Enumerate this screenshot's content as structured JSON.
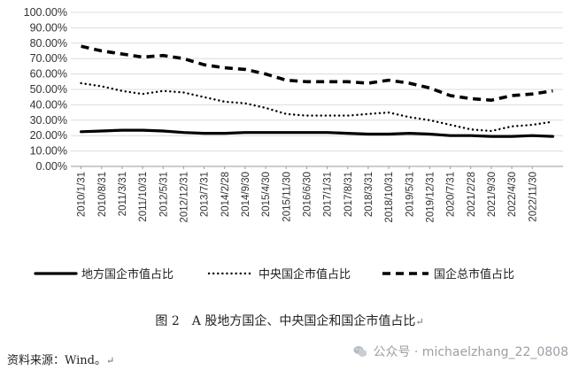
{
  "chart_data": {
    "type": "line",
    "ylim": [
      0,
      100
    ],
    "yticks": [
      "0.00%",
      "10.00%",
      "20.00%",
      "30.00%",
      "40.00%",
      "50.00%",
      "60.00%",
      "70.00%",
      "80.00%",
      "90.00%",
      "100.00%"
    ],
    "x_tick_labels": [
      "2010/1/31",
      "2010/8/31",
      "2011/3/31",
      "2011/10/31",
      "2012/5/31",
      "2012/12/31",
      "2013/7/31",
      "2014/2/28",
      "2014/9/30",
      "2015/4/30",
      "2015/11/30",
      "2016/6/30",
      "2017/1/31",
      "2017/8/31",
      "2018/3/31",
      "2018/10/31",
      "2019/5/31",
      "2019/12/31",
      "2020/7/31",
      "2021/2/28",
      "2021/9/30",
      "2022/4/30",
      "2022/11/30"
    ],
    "x": [
      "2010/1/31",
      "2010/8/31",
      "2011/3/31",
      "2011/10/31",
      "2012/5/31",
      "2012/12/31",
      "2013/7/31",
      "2014/2/28",
      "2014/9/30",
      "2015/4/30",
      "2015/11/30",
      "2016/6/30",
      "2017/1/31",
      "2017/8/31",
      "2018/3/31",
      "2018/10/31",
      "2019/5/31",
      "2019/12/31",
      "2020/7/31",
      "2021/2/28",
      "2021/9/30",
      "2022/4/30",
      "2022/11/30",
      "2023/3/31"
    ],
    "series": [
      {
        "name": "地方国企市值占比",
        "style": "solid",
        "color": "#000000",
        "values": [
          22.5,
          23,
          23.5,
          23.5,
          23,
          22,
          21.5,
          21.5,
          22,
          22,
          22,
          22,
          22,
          21.5,
          21,
          21,
          21.5,
          21,
          20,
          20,
          19.5,
          19.5,
          20,
          19.5
        ]
      },
      {
        "name": "中央国企市值占比",
        "style": "dotted",
        "color": "#000000",
        "values": [
          54,
          52,
          49,
          47,
          49,
          48,
          45,
          42,
          41,
          38,
          34,
          33,
          33,
          33,
          34,
          35,
          32,
          30,
          27,
          24,
          23,
          26,
          27,
          29
        ]
      },
      {
        "name": "国企总市值占比",
        "style": "dashed",
        "color": "#000000",
        "values": [
          78,
          75,
          73,
          71,
          72,
          70,
          66,
          64,
          63,
          60,
          56,
          55,
          55,
          55,
          54,
          56,
          54,
          51,
          46,
          44,
          43,
          46,
          47,
          49
        ]
      }
    ]
  },
  "caption": "图 2　A 股地方国企、中央国企和国企市值占比",
  "caption_mark": "↵",
  "source": "资料来源：Wind。",
  "source_mark": "↵",
  "watermark": "公众号 · michaelzhang_22_0808",
  "watermark_icon": "wechat-icon"
}
